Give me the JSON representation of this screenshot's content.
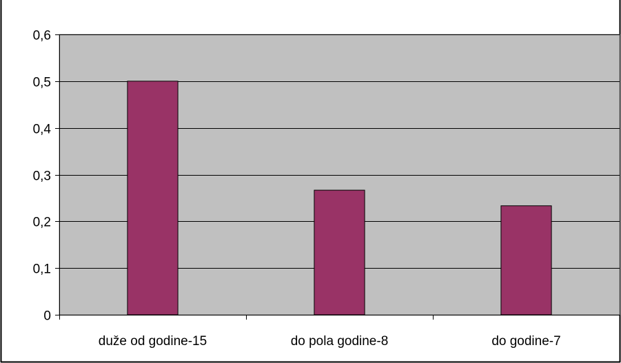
{
  "chart_data": {
    "type": "bar",
    "categories": [
      "duže od godine-15",
      "do pola godine-8",
      "do godine-7"
    ],
    "values": [
      0.5,
      0.2667,
      0.2333
    ],
    "ylim": [
      0,
      0.6
    ],
    "yticks": [
      0,
      0.1,
      0.2,
      0.3,
      0.4,
      0.5,
      0.6
    ],
    "ytick_labels": [
      "0",
      "0,1",
      "0,2",
      "0,3",
      "0,4",
      "0,5",
      "0,6"
    ],
    "grid": true,
    "legend": "none",
    "colors": {
      "plot_background": "#c0c0c0",
      "bar_fill": "#993366",
      "bar_stroke": "#000000",
      "gridline": "#000000"
    }
  }
}
